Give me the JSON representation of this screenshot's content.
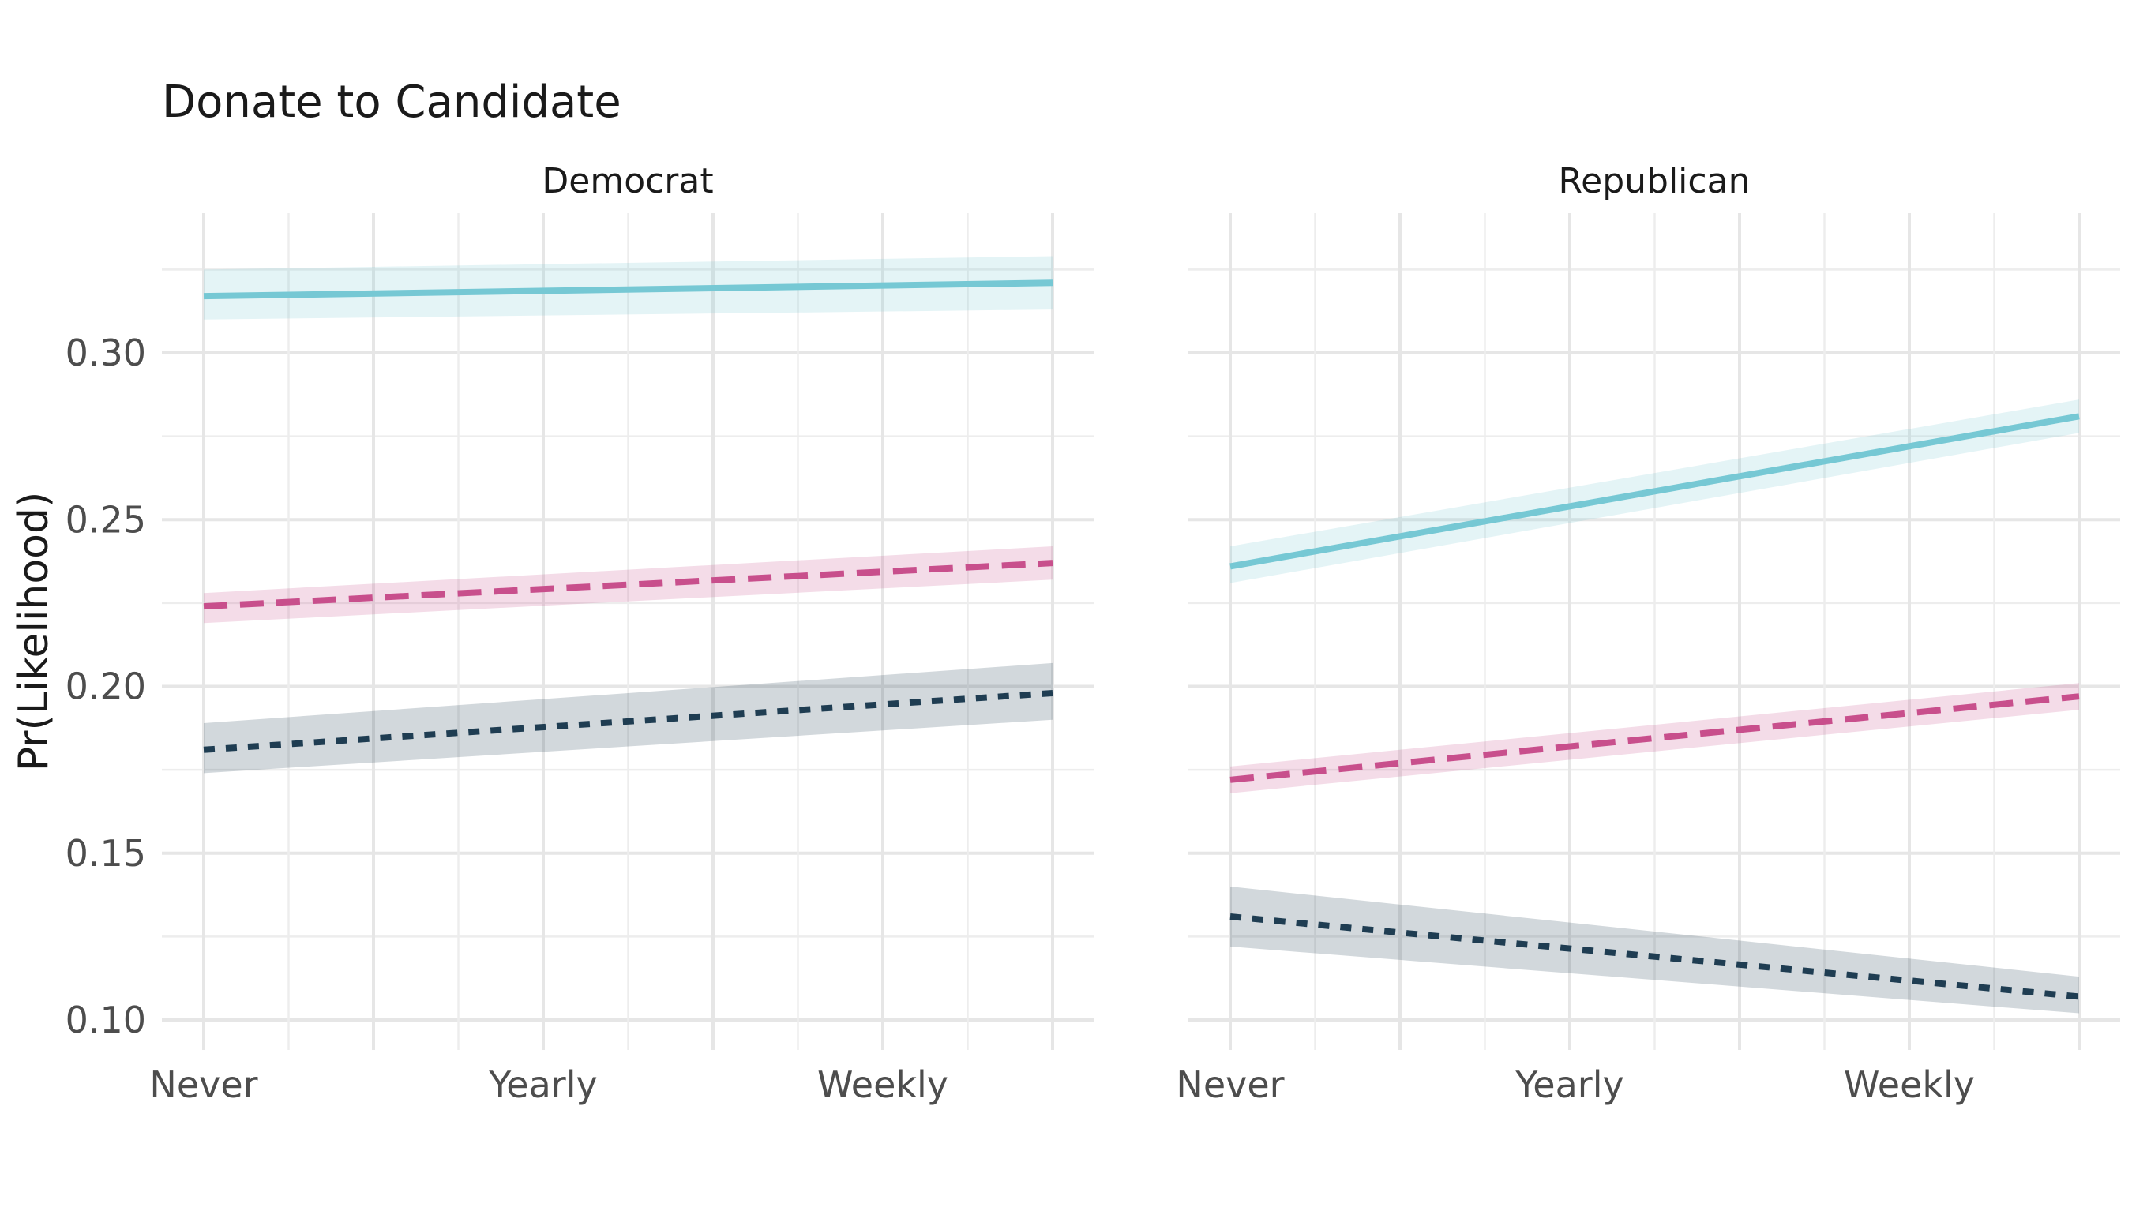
{
  "chart_data": {
    "type": "line",
    "title": "Donate to Candidate",
    "ylabel": "Pr(Likelihood)",
    "xlabel": "",
    "x_tick_labels": [
      "Never",
      "Yearly",
      "Weekly"
    ],
    "x_tick_positions": [
      0,
      2,
      4
    ],
    "xlim": [
      0,
      5
    ],
    "ylim": [
      0.1,
      0.33
    ],
    "y_ticks": [
      0.1,
      0.15,
      0.2,
      0.25,
      0.3
    ],
    "y_tick_labels": [
      "0.10",
      "0.15",
      "0.20",
      "0.25",
      "0.30"
    ],
    "grid": true,
    "legend": "none",
    "panels": [
      {
        "name": "Democrat",
        "series": [
          {
            "color": "#76c8d4",
            "dash": "solid",
            "x": [
              0,
              5
            ],
            "y": [
              0.317,
              0.321
            ],
            "lower": [
              0.31,
              0.313
            ],
            "upper": [
              0.325,
              0.329
            ]
          },
          {
            "color": "#c84f8c",
            "dash": "longdash",
            "x": [
              0,
              5
            ],
            "y": [
              0.224,
              0.237
            ],
            "lower": [
              0.219,
              0.232
            ],
            "upper": [
              0.228,
              0.242
            ]
          },
          {
            "color": "#1f3d52",
            "dash": "dotted",
            "x": [
              0,
              5
            ],
            "y": [
              0.181,
              0.198
            ],
            "lower": [
              0.174,
              0.19
            ],
            "upper": [
              0.189,
              0.207
            ]
          }
        ]
      },
      {
        "name": "Republican",
        "series": [
          {
            "color": "#76c8d4",
            "dash": "solid",
            "x": [
              0,
              5
            ],
            "y": [
              0.236,
              0.281
            ],
            "lower": [
              0.231,
              0.276
            ],
            "upper": [
              0.242,
              0.286
            ]
          },
          {
            "color": "#c84f8c",
            "dash": "longdash",
            "x": [
              0,
              5
            ],
            "y": [
              0.172,
              0.197
            ],
            "lower": [
              0.168,
              0.193
            ],
            "upper": [
              0.176,
              0.201
            ]
          },
          {
            "color": "#1f3d52",
            "dash": "dotted",
            "x": [
              0,
              5
            ],
            "y": [
              0.131,
              0.107
            ],
            "lower": [
              0.122,
              0.102
            ],
            "upper": [
              0.14,
              0.113
            ]
          }
        ]
      }
    ]
  }
}
